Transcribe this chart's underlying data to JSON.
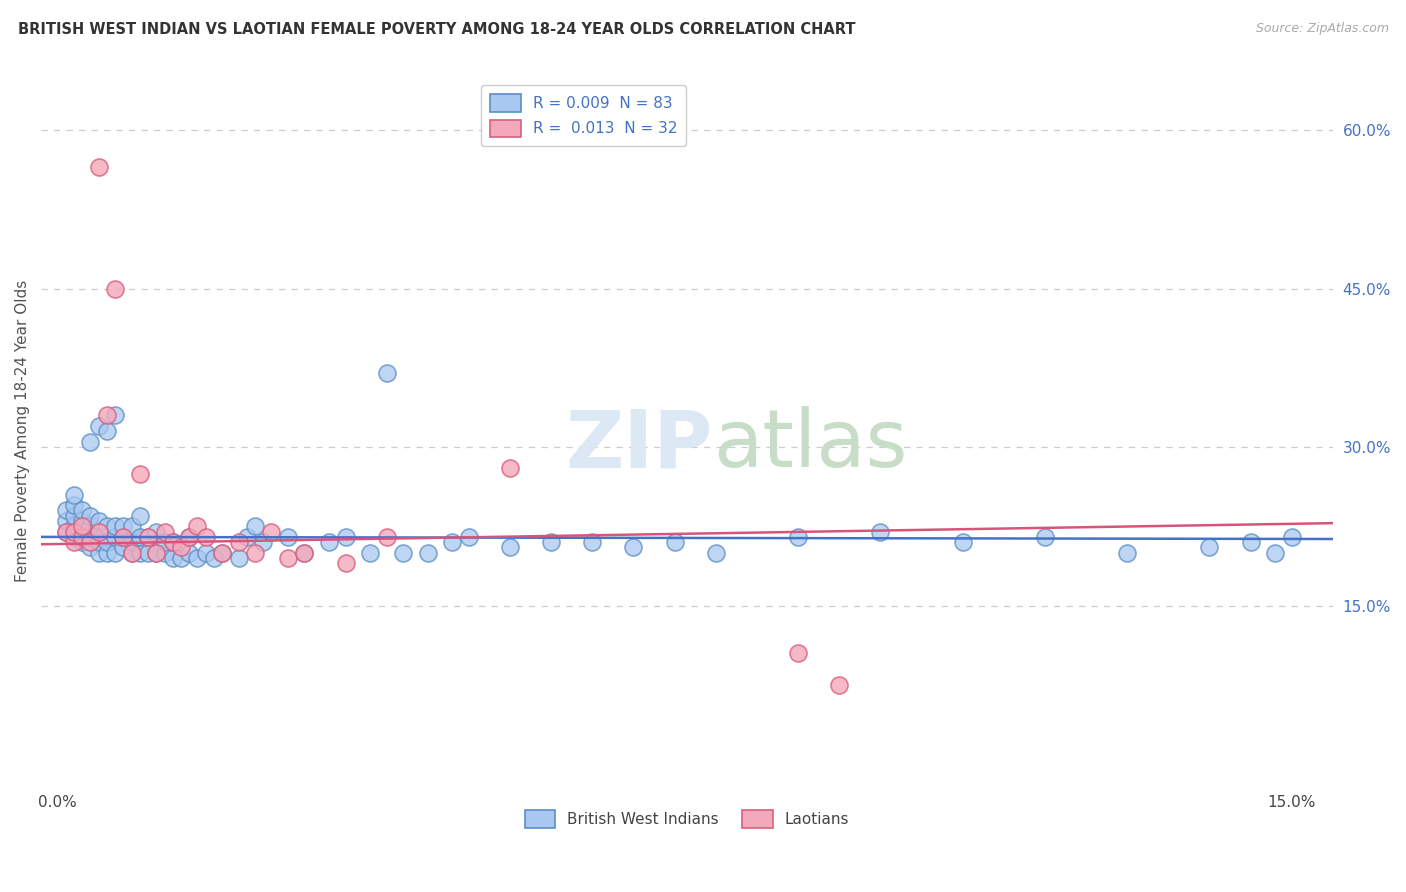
{
  "title": "BRITISH WEST INDIAN VS LAOTIAN FEMALE POVERTY AMONG 18-24 YEAR OLDS CORRELATION CHART",
  "source": "Source: ZipAtlas.com",
  "ylabel": "Female Poverty Among 18-24 Year Olds",
  "xlim": [
    -0.002,
    0.155
  ],
  "ylim": [
    -0.02,
    0.65
  ],
  "ytick_vals": [
    0.15,
    0.3,
    0.45,
    0.6
  ],
  "xtick_vals": [
    0.0,
    0.15
  ],
  "legend_label1": "British West Indians",
  "legend_label2": "Laotians",
  "color1": "#a8c8f0",
  "color2": "#f4a8bb",
  "edge_color1": "#5b8ec4",
  "edge_color2": "#d96080",
  "trend_color1": "#4472c4",
  "trend_color2": "#d9547a",
  "bwi_x": [
    0.001,
    0.001,
    0.001,
    0.002,
    0.002,
    0.002,
    0.002,
    0.002,
    0.003,
    0.003,
    0.003,
    0.003,
    0.004,
    0.004,
    0.004,
    0.004,
    0.004,
    0.005,
    0.005,
    0.005,
    0.005,
    0.005,
    0.006,
    0.006,
    0.006,
    0.006,
    0.007,
    0.007,
    0.007,
    0.007,
    0.008,
    0.008,
    0.008,
    0.009,
    0.009,
    0.009,
    0.01,
    0.01,
    0.01,
    0.011,
    0.011,
    0.012,
    0.012,
    0.013,
    0.013,
    0.014,
    0.014,
    0.015,
    0.016,
    0.016,
    0.017,
    0.018,
    0.019,
    0.02,
    0.022,
    0.023,
    0.024,
    0.025,
    0.028,
    0.03,
    0.033,
    0.035,
    0.038,
    0.04,
    0.042,
    0.045,
    0.048,
    0.05,
    0.055,
    0.06,
    0.065,
    0.07,
    0.075,
    0.08,
    0.09,
    0.1,
    0.11,
    0.12,
    0.13,
    0.14,
    0.145,
    0.148,
    0.15
  ],
  "bwi_y": [
    0.22,
    0.23,
    0.24,
    0.215,
    0.225,
    0.235,
    0.245,
    0.255,
    0.21,
    0.22,
    0.23,
    0.24,
    0.205,
    0.215,
    0.225,
    0.235,
    0.305,
    0.2,
    0.21,
    0.22,
    0.23,
    0.32,
    0.2,
    0.21,
    0.225,
    0.315,
    0.2,
    0.215,
    0.225,
    0.33,
    0.205,
    0.215,
    0.225,
    0.2,
    0.21,
    0.225,
    0.2,
    0.215,
    0.235,
    0.2,
    0.215,
    0.2,
    0.22,
    0.2,
    0.21,
    0.195,
    0.21,
    0.195,
    0.2,
    0.215,
    0.195,
    0.2,
    0.195,
    0.2,
    0.195,
    0.215,
    0.225,
    0.21,
    0.215,
    0.2,
    0.21,
    0.215,
    0.2,
    0.37,
    0.2,
    0.2,
    0.21,
    0.215,
    0.205,
    0.21,
    0.21,
    0.205,
    0.21,
    0.2,
    0.215,
    0.22,
    0.21,
    0.215,
    0.2,
    0.205,
    0.21,
    0.2,
    0.215
  ],
  "laotian_x": [
    0.001,
    0.002,
    0.002,
    0.003,
    0.003,
    0.004,
    0.005,
    0.005,
    0.006,
    0.007,
    0.008,
    0.009,
    0.01,
    0.011,
    0.012,
    0.013,
    0.014,
    0.015,
    0.016,
    0.017,
    0.018,
    0.02,
    0.022,
    0.024,
    0.026,
    0.028,
    0.03,
    0.035,
    0.04,
    0.09,
    0.095,
    0.055
  ],
  "laotian_y": [
    0.22,
    0.21,
    0.22,
    0.215,
    0.225,
    0.21,
    0.565,
    0.22,
    0.33,
    0.45,
    0.215,
    0.2,
    0.275,
    0.215,
    0.2,
    0.22,
    0.21,
    0.205,
    0.215,
    0.225,
    0.215,
    0.2,
    0.21,
    0.2,
    0.22,
    0.195,
    0.2,
    0.19,
    0.215,
    0.105,
    0.075,
    0.28
  ]
}
